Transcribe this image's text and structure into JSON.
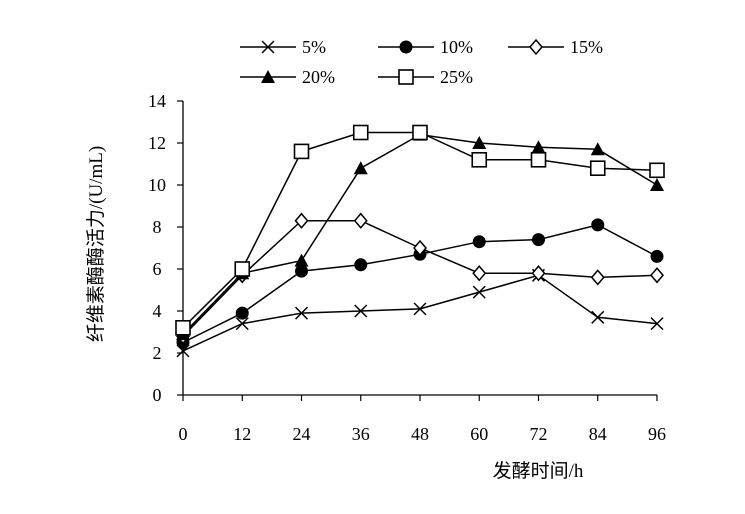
{
  "chart_data": {
    "type": "line",
    "xlabel": "发酵时间/h",
    "ylabel": "纤维素酶酶活力/(U/mL)",
    "x": [
      0,
      12,
      24,
      36,
      48,
      60,
      72,
      84,
      96
    ],
    "xlim": [
      0,
      96
    ],
    "ylim": [
      0,
      14
    ],
    "x_ticks": [
      "0",
      "12",
      "24",
      "36",
      "48",
      "60",
      "72",
      "84",
      "96"
    ],
    "y_ticks": [
      "0",
      "2",
      "4",
      "6",
      "8",
      "10",
      "12",
      "14"
    ],
    "grid": false,
    "legend_position": "top",
    "series": [
      {
        "name": "5%",
        "marker": "x",
        "values": [
          2.1,
          3.4,
          3.9,
          4.0,
          4.1,
          4.9,
          5.7,
          3.7,
          3.4
        ]
      },
      {
        "name": "10%",
        "marker": "filled-circle",
        "values": [
          2.5,
          3.9,
          5.9,
          6.2,
          6.7,
          7.3,
          7.4,
          8.1,
          6.6
        ]
      },
      {
        "name": "15%",
        "marker": "open-diamond",
        "values": [
          2.8,
          5.7,
          8.3,
          8.3,
          7.0,
          5.8,
          5.8,
          5.6,
          5.7
        ]
      },
      {
        "name": "20%",
        "marker": "filled-triangle",
        "values": [
          2.9,
          5.8,
          6.4,
          10.8,
          12.4,
          12.0,
          11.8,
          11.7,
          10.0
        ]
      },
      {
        "name": "25%",
        "marker": "open-square",
        "values": [
          3.2,
          6.0,
          11.6,
          12.5,
          12.5,
          11.2,
          11.2,
          10.8,
          10.7
        ]
      }
    ]
  }
}
